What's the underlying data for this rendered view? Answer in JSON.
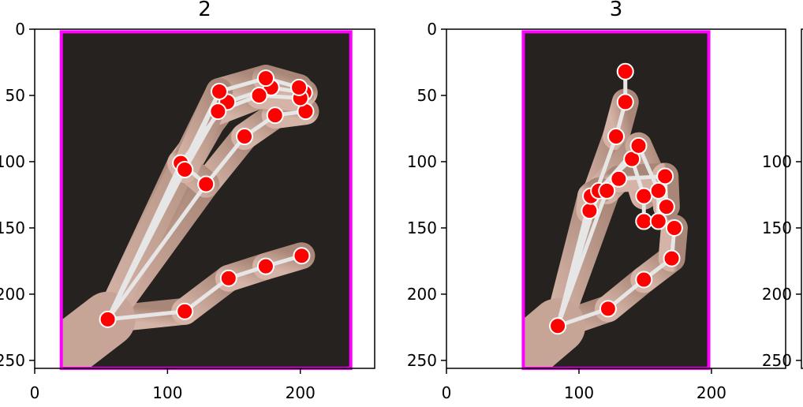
{
  "chart_data": [
    {
      "type": "scatter",
      "title": "2",
      "xticks": [
        "0",
        "100",
        "200"
      ],
      "yticks": [
        "0",
        "50",
        "100",
        "150",
        "200",
        "250"
      ],
      "xlim": [
        0,
        256
      ],
      "ylim": [
        256,
        0
      ],
      "border": {
        "x": [
          20,
          238
        ],
        "y": [
          2,
          256
        ]
      },
      "landmarks": [
        [
          55,
          219
        ],
        [
          113,
          213
        ],
        [
          146,
          188
        ],
        [
          174,
          179
        ],
        [
          201,
          171
        ],
        [
          129,
          117
        ],
        [
          158,
          81
        ],
        [
          181,
          65
        ],
        [
          204,
          62
        ],
        [
          110,
          101
        ],
        [
          145,
          55
        ],
        [
          178,
          44
        ],
        [
          203,
          48
        ],
        [
          113,
          106
        ],
        [
          138,
          62
        ],
        [
          169,
          50
        ],
        [
          200,
          52
        ],
        [
          139,
          47
        ],
        [
          174,
          37
        ],
        [
          199,
          44
        ]
      ],
      "connections": [
        [
          0,
          1
        ],
        [
          1,
          2
        ],
        [
          2,
          3
        ],
        [
          3,
          4
        ],
        [
          0,
          5
        ],
        [
          5,
          6
        ],
        [
          6,
          7
        ],
        [
          7,
          8
        ],
        [
          0,
          9
        ],
        [
          9,
          10
        ],
        [
          10,
          11
        ],
        [
          11,
          12
        ],
        [
          0,
          13
        ],
        [
          13,
          14
        ],
        [
          14,
          15
        ],
        [
          15,
          16
        ],
        [
          0,
          17
        ],
        [
          17,
          18
        ],
        [
          18,
          19
        ],
        [
          5,
          9
        ],
        [
          9,
          13
        ],
        [
          13,
          17
        ]
      ]
    },
    {
      "type": "scatter",
      "title": "3",
      "xticks": [
        "0",
        "100",
        "200"
      ],
      "yticks": [
        "0",
        "50",
        "100",
        "150",
        "200",
        "250"
      ],
      "xlim": [
        0,
        256
      ],
      "ylim": [
        256,
        0
      ],
      "border": {
        "x": [
          58,
          198
        ],
        "y": [
          2,
          256
        ]
      },
      "landmarks": [
        [
          84,
          224
        ],
        [
          122,
          211
        ],
        [
          149,
          189
        ],
        [
          170,
          173
        ],
        [
          172,
          150
        ],
        [
          108,
          137
        ],
        [
          128,
          81
        ],
        [
          135,
          55
        ],
        [
          135,
          32
        ],
        [
          109,
          126
        ],
        [
          140,
          98
        ],
        [
          149,
          126
        ],
        [
          149,
          145
        ],
        [
          115,
          122
        ],
        [
          145,
          88
        ],
        [
          160,
          122
        ],
        [
          160,
          145
        ],
        [
          121,
          122
        ],
        [
          130,
          113
        ],
        [
          165,
          111
        ],
        [
          166,
          134
        ]
      ],
      "connections": [
        [
          0,
          1
        ],
        [
          1,
          2
        ],
        [
          2,
          3
        ],
        [
          3,
          4
        ],
        [
          0,
          5
        ],
        [
          5,
          6
        ],
        [
          6,
          7
        ],
        [
          7,
          8
        ],
        [
          0,
          9
        ],
        [
          9,
          10
        ],
        [
          10,
          11
        ],
        [
          11,
          12
        ],
        [
          0,
          13
        ],
        [
          13,
          14
        ],
        [
          14,
          15
        ],
        [
          15,
          16
        ],
        [
          0,
          17
        ],
        [
          17,
          18
        ],
        [
          18,
          19
        ],
        [
          19,
          20
        ],
        [
          5,
          9
        ],
        [
          9,
          13
        ],
        [
          13,
          17
        ]
      ]
    },
    {
      "type": "scatter",
      "title": "",
      "yticks": [
        "100",
        "150",
        "200",
        "250"
      ]
    }
  ],
  "colors": {
    "marker": "#ff0000",
    "marker_edge": "#ffffff",
    "skeleton": "#e6e6e6",
    "bbox": "#ff00ff",
    "background_dark": "#262220",
    "skin": "#caa99a"
  }
}
